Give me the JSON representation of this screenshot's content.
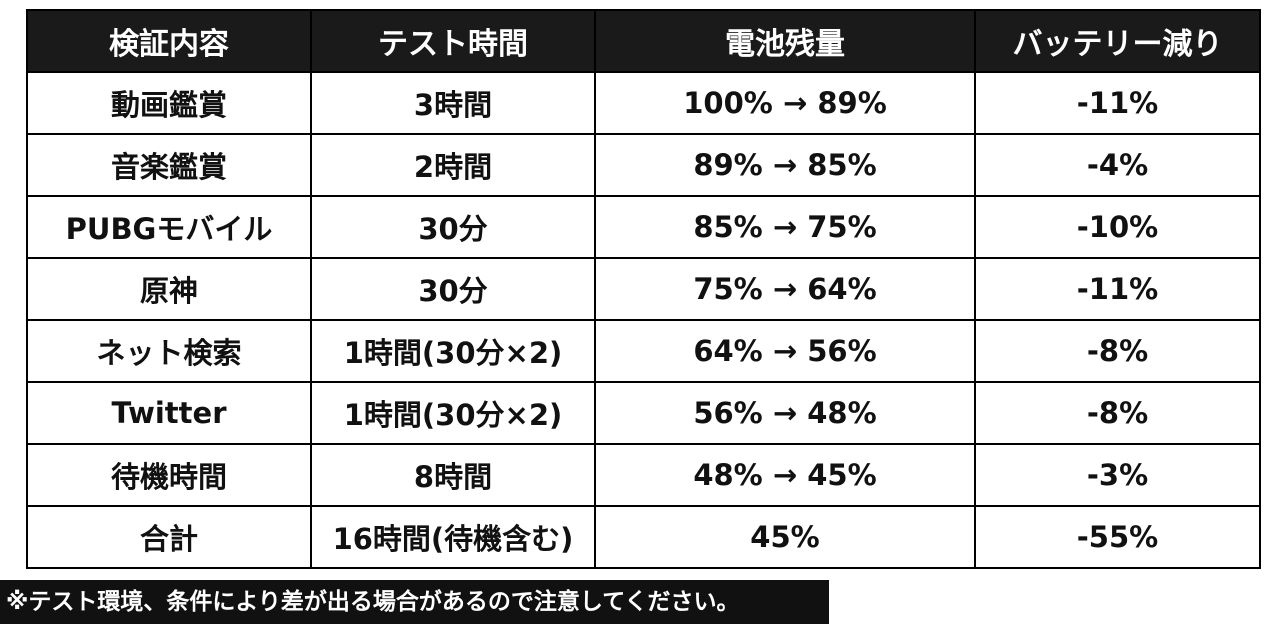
{
  "table": {
    "headers": [
      "検証内容",
      "テスト時間",
      "電池残量",
      "バッテリー減り"
    ],
    "rows": [
      [
        "動画鑑賞",
        "3時間",
        "100% → 89%",
        "-11%"
      ],
      [
        "音楽鑑賞",
        "2時間",
        "89% → 85%",
        "-4%"
      ],
      [
        "PUBGモバイル",
        "30分",
        "85% → 75%",
        "-10%"
      ],
      [
        "原神",
        "30分",
        "75% → 64%",
        "-11%"
      ],
      [
        "ネット検索",
        "1時間(30分×2)",
        "64% → 56%",
        "-8%"
      ],
      [
        "Twitter",
        "1時間(30分×2)",
        "56% → 48%",
        "-8%"
      ],
      [
        "待機時間",
        "8時間",
        "48% → 45%",
        "-3%"
      ],
      [
        "合計",
        "16時間(待機含む)",
        "45%",
        "-55%"
      ]
    ]
  },
  "note": "※テスト環境、条件により差が出る場合があるので注意してください。",
  "colors": {
    "header_bg": "#1a1a1a",
    "header_text": "#ffffff",
    "cell_bg": "#ffffff",
    "cell_text": "#111111",
    "border": "#000000",
    "note_bg": "#111111",
    "note_text": "#ffffff"
  }
}
